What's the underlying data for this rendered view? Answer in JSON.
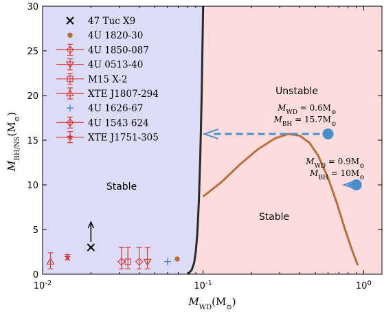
{
  "chart_data": {
    "type": "scatter",
    "x_scale": "log",
    "xlim": [
      0.01,
      1.3
    ],
    "ylim": [
      0,
      30
    ],
    "xlabel_main": "M",
    "xlabel_sub": "WD",
    "xlabel_unit": "(M",
    "xlabel_unit_sub": "⊙",
    "xlabel_close": ")",
    "ylabel_main": "M",
    "ylabel_sub": "BH/NS",
    "ylabel_unit": "(M",
    "ylabel_unit_sub": "⊙",
    "ylabel_close": ")",
    "x_ticks": [
      {
        "value": 0.01,
        "base": "10",
        "exp": "-2"
      },
      {
        "value": 0.1,
        "base": "10",
        "exp": "-1"
      },
      {
        "value": 1,
        "base": "10",
        "exp": "0"
      }
    ],
    "y_ticks": [
      0,
      5,
      10,
      15,
      20,
      25,
      30
    ],
    "grid": false,
    "legend_position": "top-left",
    "colors": {
      "stable_fill": "#dcdcf6",
      "unstable_fill": "#fcdcdc",
      "boundary": "#2a2a2a",
      "brown": "#b5703d",
      "red": "#d63a3a",
      "blue": "#4a8fcb",
      "black": "#000000"
    },
    "regions": {
      "stable_left": "Stable",
      "unstable": "Unstable",
      "stable_right": "Stable"
    },
    "boundary_curve": {
      "x": [
        0.0805,
        0.085,
        0.088,
        0.09,
        0.092,
        0.094,
        0.096,
        0.098,
        0.1
      ],
      "y": [
        0,
        0.5,
        1.3,
        2.5,
        4.5,
        8,
        13,
        20,
        30
      ]
    },
    "brown_curve": {
      "x": [
        0.1,
        0.13,
        0.17,
        0.22,
        0.28,
        0.34,
        0.4,
        0.46,
        0.52,
        0.6,
        0.68,
        0.76,
        0.85,
        0.92
      ],
      "y": [
        8.7,
        10.3,
        12.3,
        14.0,
        15.2,
        15.7,
        15.5,
        14.7,
        13.3,
        10.8,
        8.0,
        5.2,
        2.6,
        1.0
      ]
    },
    "series": [
      {
        "name": "47 Tuc X9",
        "marker": "x",
        "color": "#000000",
        "x": 0.02,
        "y": 3.0,
        "lower_limit": true
      },
      {
        "name": "4U 1820-30",
        "marker": "dot",
        "color": "#b5703d",
        "x": 0.069,
        "y": 1.7
      },
      {
        "name": "4U 1850-087",
        "marker": "diamond",
        "color": "#d63a3a",
        "x": 0.04,
        "y": 1.4,
        "err": [
          0.8,
          1.6
        ]
      },
      {
        "name": "4U 0513-40",
        "marker": "tri-down",
        "color": "#d63a3a",
        "x": 0.045,
        "y": 1.4,
        "err": [
          0.8,
          1.6
        ]
      },
      {
        "name": "M15 X-2",
        "marker": "square",
        "color": "#d63a3a",
        "x": 0.034,
        "y": 1.4,
        "err": [
          0.8,
          1.6
        ]
      },
      {
        "name": "XTE J1807-294",
        "marker": "tri-up",
        "color": "#d63a3a",
        "x": 0.0112,
        "y": 1.4,
        "err": [
          0.8,
          1.0
        ]
      },
      {
        "name": "4U 1626-67",
        "marker": "plus",
        "color": "#4a8fcb",
        "x": 0.06,
        "y": 1.4
      },
      {
        "name": "4U 1543 624",
        "marker": "diamond",
        "color": "#d63a3a",
        "x": 0.031,
        "y": 1.4,
        "err": [
          0.8,
          1.6
        ]
      },
      {
        "name": "XTE J1751-305",
        "marker": "star",
        "color": "#d63a3a",
        "x": 0.0143,
        "y": 1.9,
        "err": [
          0.3,
          0.3
        ]
      }
    ],
    "annotations": [
      {
        "x": 0.6,
        "y": 15.7,
        "arrow_to_x": 0.1,
        "wd_value": "= 0.6M",
        "bh_value": "= 15.7M"
      },
      {
        "x": 0.9,
        "y": 10.0,
        "arrow_to_x": 0.74,
        "wd_value": "= 0.9M",
        "bh_value": "= 10M"
      }
    ],
    "annotation_sub_wd": "WD",
    "annotation_sub_bh": "BH",
    "sun_symbol": "⊙"
  }
}
